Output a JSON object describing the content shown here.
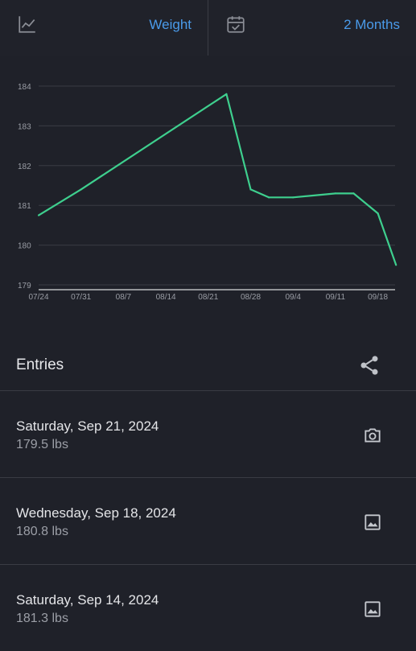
{
  "header": {
    "chart_icon": "line-chart-icon",
    "metric_label": "Weight",
    "calendar_icon": "calendar-check-icon",
    "range_label": "2 Months"
  },
  "colors": {
    "background": "#1f2129",
    "accent": "#4a9bea",
    "line": "#3ecf8e",
    "divider": "#3a3c44"
  },
  "chart_data": {
    "type": "line",
    "x": [
      "07/24",
      "07/31",
      "08/7",
      "08/14",
      "08/21",
      "08/28",
      "09/4",
      "09/11",
      "09/18"
    ],
    "points": [
      {
        "date": "07/24",
        "value": 180.75
      },
      {
        "date": "07/31",
        "value": 181.4
      },
      {
        "date": "08/24",
        "value": 183.8
      },
      {
        "date": "08/28",
        "value": 181.4
      },
      {
        "date": "08/31",
        "value": 181.2
      },
      {
        "date": "09/4",
        "value": 181.2
      },
      {
        "date": "09/11",
        "value": 181.3
      },
      {
        "date": "09/14",
        "value": 181.3
      },
      {
        "date": "09/18",
        "value": 180.8
      },
      {
        "date": "09/21",
        "value": 179.5
      }
    ],
    "yticks": [
      "179",
      "180",
      "181",
      "182",
      "183",
      "184"
    ],
    "ylim": [
      179,
      184
    ],
    "grid": true,
    "title": "",
    "xlabel": "",
    "ylabel": ""
  },
  "entries_section": {
    "title": "Entries",
    "share_icon": "share-icon"
  },
  "entries": [
    {
      "date": "Saturday, Sep 21, 2024",
      "value": "179.5 lbs",
      "icon": "camera-icon"
    },
    {
      "date": "Wednesday, Sep 18, 2024",
      "value": "180.8 lbs",
      "icon": "image-icon"
    },
    {
      "date": "Saturday, Sep 14, 2024",
      "value": "181.3 lbs",
      "icon": "image-icon"
    }
  ]
}
